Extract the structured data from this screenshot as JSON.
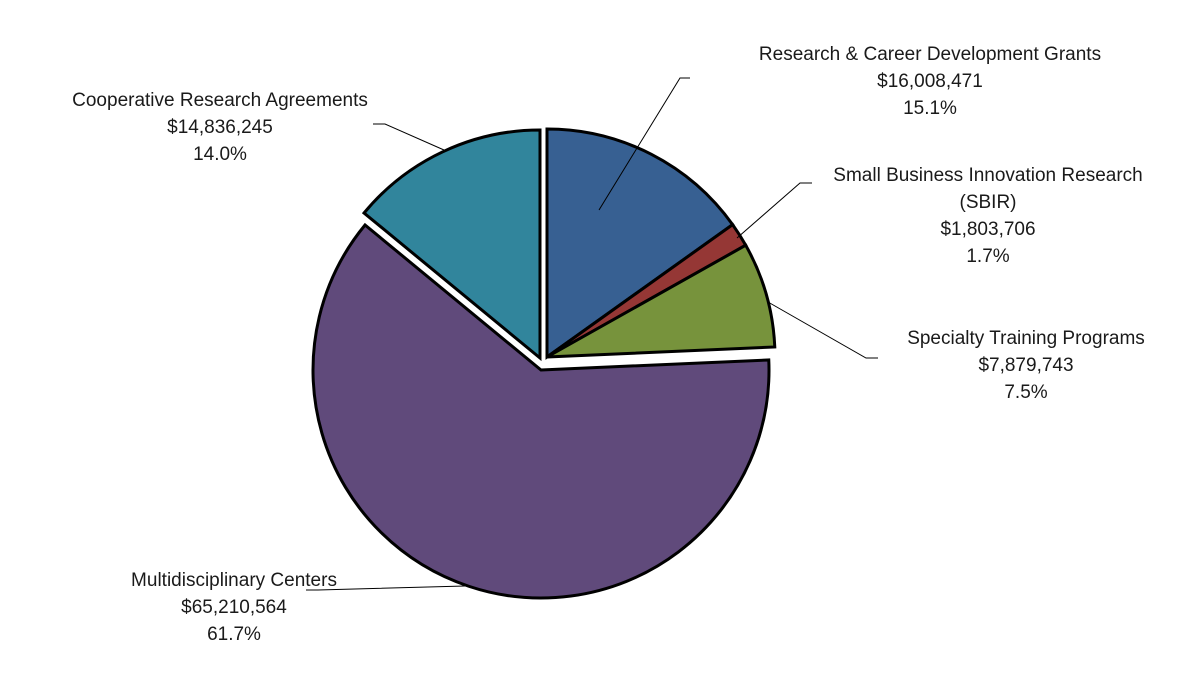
{
  "chart_data": {
    "type": "pie",
    "title": "",
    "slices": [
      {
        "label_lines": [
          "Research & Career Development Grants"
        ],
        "value": 16008471,
        "value_text": "$16,008,471",
        "percent": 15.1,
        "percent_text": "15.1%",
        "color": "#376092"
      },
      {
        "label_lines": [
          "Small Business Innovation Research",
          "(SBIR)"
        ],
        "value": 1803706,
        "value_text": "$1,803,706",
        "percent": 1.7,
        "percent_text": "1.7%",
        "color": "#953735"
      },
      {
        "label_lines": [
          "Specialty Training Programs"
        ],
        "value": 7879743,
        "value_text": "$7,879,743",
        "percent": 7.5,
        "percent_text": "7.5%",
        "color": "#77933C"
      },
      {
        "label_lines": [
          "Multidisciplinary Centers"
        ],
        "value": 65210564,
        "value_text": "$65,210,564",
        "percent": 61.7,
        "percent_text": "61.7%",
        "color": "#604A7B"
      },
      {
        "label_lines": [
          "Cooperative Research Agreements"
        ],
        "value": 14836245,
        "value_text": "$14,836,245",
        "percent": 14.0,
        "percent_text": "14.0%",
        "color": "#31859C"
      }
    ],
    "start_angle_deg": 0,
    "direction": "clockwise",
    "exploded": true,
    "legend": "none",
    "data_labels": "outside with leader lines"
  }
}
